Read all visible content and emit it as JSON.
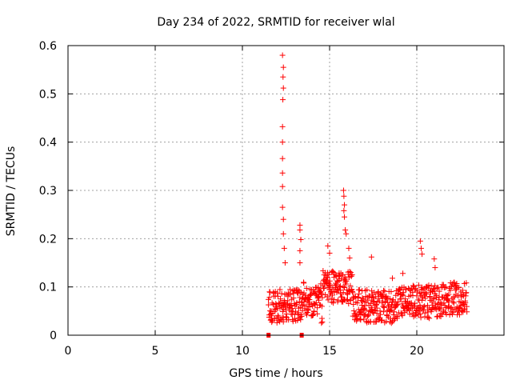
{
  "chart_data": {
    "type": "scatter",
    "title": "Day 234 of 2022, SRMTID for receiver wlal",
    "xlabel": "GPS time / hours",
    "ylabel": "SRMTID / TECUs",
    "xlim": [
      0,
      25
    ],
    "ylim": [
      0,
      0.6
    ],
    "xticks": [
      0,
      5,
      10,
      15,
      20
    ],
    "yticks": [
      0,
      0.1,
      0.2,
      0.3,
      0.4,
      0.5,
      0.6
    ],
    "xtick_labels": [
      "0",
      "5",
      "10",
      "15",
      "20"
    ],
    "ytick_labels": [
      "0",
      "0.1",
      "0.2",
      "0.3",
      "0.4",
      "0.5",
      "0.6"
    ],
    "grid": true,
    "marker": "+",
    "color": "#ff0000",
    "data_span_hours": [
      11.5,
      22.9
    ],
    "peaks": [
      {
        "x": 12.3,
        "y": 0.58
      },
      {
        "x": 12.35,
        "y": 0.555
      },
      {
        "x": 12.33,
        "y": 0.535
      },
      {
        "x": 12.35,
        "y": 0.512
      },
      {
        "x": 12.32,
        "y": 0.488
      },
      {
        "x": 12.3,
        "y": 0.432
      },
      {
        "x": 12.3,
        "y": 0.4
      },
      {
        "x": 12.3,
        "y": 0.366
      },
      {
        "x": 12.3,
        "y": 0.336
      },
      {
        "x": 12.3,
        "y": 0.308
      },
      {
        "x": 12.3,
        "y": 0.265
      },
      {
        "x": 12.35,
        "y": 0.24
      },
      {
        "x": 12.35,
        "y": 0.21
      },
      {
        "x": 12.4,
        "y": 0.18
      },
      {
        "x": 12.45,
        "y": 0.15
      },
      {
        "x": 13.3,
        "y": 0.228
      },
      {
        "x": 13.3,
        "y": 0.218
      },
      {
        "x": 13.35,
        "y": 0.198
      },
      {
        "x": 13.3,
        "y": 0.175
      },
      {
        "x": 13.3,
        "y": 0.15
      },
      {
        "x": 15.8,
        "y": 0.3
      },
      {
        "x": 15.82,
        "y": 0.288
      },
      {
        "x": 15.85,
        "y": 0.27
      },
      {
        "x": 15.82,
        "y": 0.258
      },
      {
        "x": 15.85,
        "y": 0.245
      },
      {
        "x": 15.9,
        "y": 0.218
      },
      {
        "x": 15.95,
        "y": 0.21
      },
      {
        "x": 14.9,
        "y": 0.185
      },
      {
        "x": 15.0,
        "y": 0.17
      },
      {
        "x": 16.1,
        "y": 0.18
      },
      {
        "x": 16.15,
        "y": 0.16
      },
      {
        "x": 17.4,
        "y": 0.162
      },
      {
        "x": 20.2,
        "y": 0.195
      },
      {
        "x": 20.25,
        "y": 0.18
      },
      {
        "x": 20.3,
        "y": 0.168
      },
      {
        "x": 21.0,
        "y": 0.158
      },
      {
        "x": 21.05,
        "y": 0.14
      },
      {
        "x": 19.2,
        "y": 0.128
      },
      {
        "x": 18.6,
        "y": 0.118
      }
    ],
    "gap_markers": [
      {
        "x": 11.5,
        "y": 0
      },
      {
        "x": 13.4,
        "y": 0
      }
    ]
  }
}
